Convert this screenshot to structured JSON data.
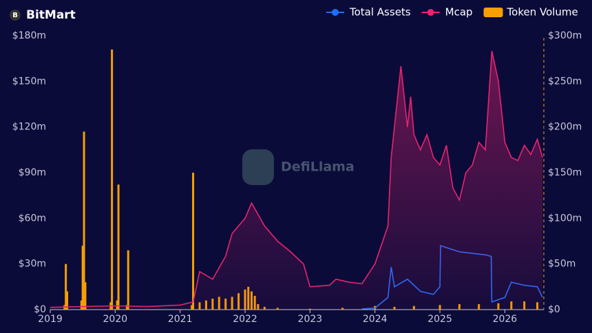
{
  "chart_data": {
    "type": "line",
    "title": "BitMart",
    "watermark": "DefiLlama",
    "xlim": [
      2019,
      2026.6
    ],
    "xticks": [
      2019,
      2020,
      2021,
      2022,
      2023,
      2024,
      2025,
      2026
    ],
    "ylim": [
      0,
      180
    ],
    "yticks": [
      {
        "value": 0,
        "label": "$0"
      },
      {
        "value": 30,
        "label": "$30m"
      },
      {
        "value": 60,
        "label": "$60m"
      },
      {
        "value": 90,
        "label": "$90m"
      },
      {
        "value": 120,
        "label": "$120m"
      },
      {
        "value": 150,
        "label": "$150m"
      },
      {
        "value": 180,
        "label": "$180m"
      }
    ],
    "y2lim": [
      0,
      300
    ],
    "y2ticks": [
      {
        "value": 0,
        "label": "$0"
      },
      {
        "value": 50,
        "label": "$50m"
      },
      {
        "value": 100,
        "label": "$100m"
      },
      {
        "value": 150,
        "label": "$150m"
      },
      {
        "value": 200,
        "label": "$200m"
      },
      {
        "value": 250,
        "label": "$250m"
      },
      {
        "value": 300,
        "label": "$300m"
      }
    ],
    "series": [
      {
        "name": "Total Assets",
        "type": "line",
        "color": "#1f6fff",
        "x": [
          2023.8,
          2024.0,
          2024.2,
          2024.25,
          2024.3,
          2024.5,
          2024.7,
          2024.9,
          2025.0,
          2025.01,
          2025.3,
          2025.5,
          2025.7,
          2025.79,
          2025.8,
          2026.0,
          2026.1,
          2026.3,
          2026.5,
          2026.58
        ],
        "values": [
          0.5,
          1,
          8,
          28,
          15,
          20,
          12,
          10,
          15,
          42,
          38,
          37,
          36,
          35,
          5,
          8,
          18,
          16,
          15,
          8
        ]
      },
      {
        "name": "Mcap",
        "type": "line",
        "color": "#e8246e",
        "x": [
          2019.0,
          2019.5,
          2020.0,
          2020.5,
          2021.0,
          2021.2,
          2021.3,
          2021.5,
          2021.7,
          2021.8,
          2022.0,
          2022.1,
          2022.3,
          2022.5,
          2022.7,
          2022.9,
          2023.0,
          2023.3,
          2023.4,
          2023.6,
          2023.8,
          2024.0,
          2024.2,
          2024.25,
          2024.4,
          2024.5,
          2024.55,
          2024.6,
          2024.7,
          2024.8,
          2024.9,
          2025.0,
          2025.1,
          2025.2,
          2025.3,
          2025.4,
          2025.5,
          2025.6,
          2025.7,
          2025.8,
          2025.9,
          2026.0,
          2026.1,
          2026.2,
          2026.3,
          2026.4,
          2026.5,
          2026.58
        ],
        "values": [
          1.5,
          2,
          2.5,
          2,
          3,
          5,
          25,
          20,
          35,
          50,
          60,
          70,
          55,
          45,
          38,
          30,
          15,
          16,
          20,
          18,
          17,
          30,
          55,
          100,
          160,
          120,
          140,
          115,
          105,
          115,
          100,
          95,
          108,
          80,
          72,
          90,
          95,
          110,
          105,
          170,
          150,
          110,
          100,
          98,
          108,
          102,
          112,
          100
        ]
      },
      {
        "name": "Token Volume",
        "type": "bar",
        "axis": "y2",
        "color": "#f5a000",
        "x": [
          2019.22,
          2019.24,
          2019.26,
          2019.48,
          2019.5,
          2019.52,
          2019.54,
          2019.93,
          2019.95,
          2020.03,
          2020.05,
          2020.18,
          2020.2,
          2021.18,
          2021.2,
          2021.3,
          2021.4,
          2021.5,
          2021.6,
          2021.7,
          2021.8,
          2021.9,
          2022.0,
          2022.05,
          2022.1,
          2022.15,
          2022.2,
          2022.3,
          2022.5,
          2023.0,
          2023.5,
          2024.0,
          2024.3,
          2024.6,
          2025.0,
          2025.3,
          2025.6,
          2025.9,
          2026.1,
          2026.3,
          2026.5
        ],
        "values": [
          5,
          50,
          20,
          10,
          70,
          195,
          30,
          8,
          285,
          10,
          137,
          5,
          65,
          5,
          150,
          8,
          10,
          12,
          14,
          12,
          14,
          18,
          22,
          25,
          20,
          15,
          6,
          3,
          2,
          1,
          2,
          4,
          3,
          4,
          5,
          6,
          6,
          7,
          9,
          9,
          8
        ]
      }
    ]
  }
}
